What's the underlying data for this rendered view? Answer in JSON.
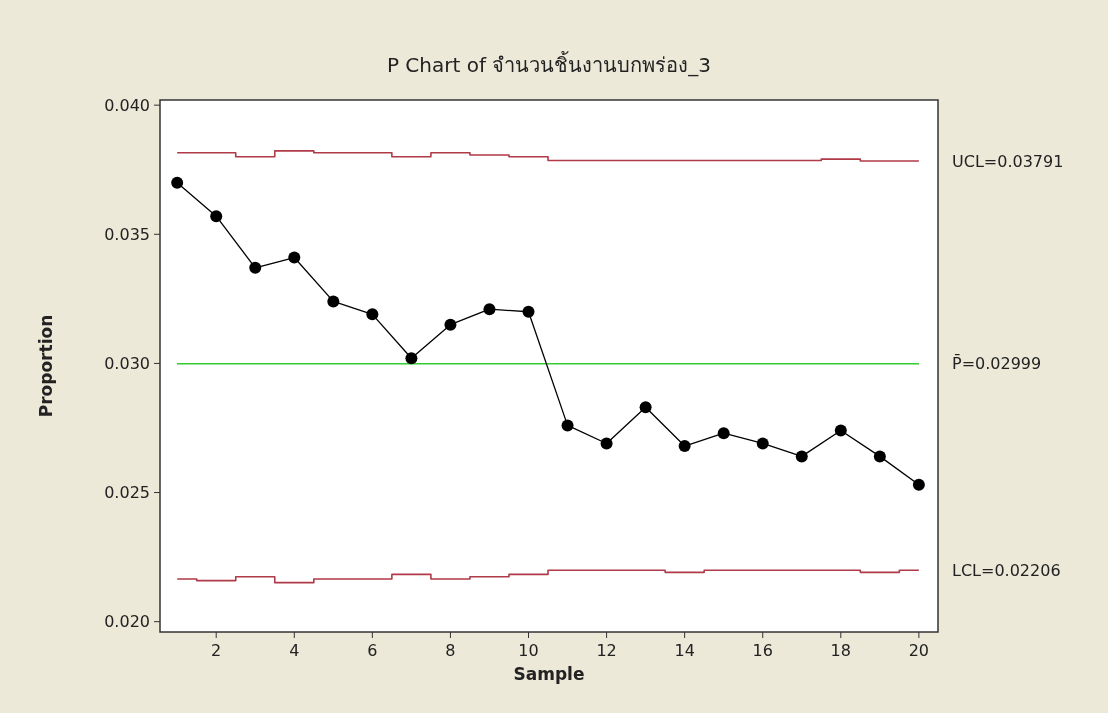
{
  "chart_data": {
    "type": "line",
    "title": "P Chart of จำนวนชิ้นงานบกพร่อง_3",
    "xlabel": "Sample",
    "ylabel": "Proportion",
    "x": [
      1,
      2,
      3,
      4,
      5,
      6,
      7,
      8,
      9,
      10,
      11,
      12,
      13,
      14,
      15,
      16,
      17,
      18,
      19,
      20
    ],
    "xlim": [
      0.56,
      20.49
    ],
    "xticks": [
      2,
      4,
      6,
      8,
      10,
      12,
      14,
      16,
      18,
      20
    ],
    "ylim": [
      0.0196,
      0.0402
    ],
    "yticks": [
      {
        "value": 0.02,
        "label": "0.020"
      },
      {
        "value": 0.025,
        "label": "0.025"
      },
      {
        "value": 0.03,
        "label": "0.030"
      },
      {
        "value": 0.035,
        "label": "0.035"
      },
      {
        "value": 0.04,
        "label": "0.040"
      }
    ],
    "series": [
      {
        "color": "#000000",
        "marker": "circle",
        "values": [
          0.037,
          0.0357,
          0.0337,
          0.0341,
          0.0324,
          0.0319,
          0.0302,
          0.0315,
          0.0321,
          0.032,
          0.0276,
          0.0269,
          0.0283,
          0.0268,
          0.0273,
          0.0269,
          0.0264,
          0.0274,
          0.0264,
          0.0253
        ]
      },
      {
        "type": "step",
        "name": "UCL=0.03791",
        "color": "#b03a48",
        "marker": "none",
        "values": [
          0.03816,
          0.03816,
          0.038,
          0.03823,
          0.03816,
          0.03816,
          0.038,
          0.03816,
          0.03807,
          0.038,
          0.03786,
          0.03786,
          0.03786,
          0.03786,
          0.03786,
          0.03786,
          0.03786,
          0.03791,
          0.03784,
          0.03784
        ]
      },
      {
        "type": "step",
        "name": "LCL=0.02206",
        "color": "#b03a48",
        "marker": "none",
        "values": [
          0.02165,
          0.02159,
          0.02174,
          0.02151,
          0.02165,
          0.02165,
          0.02183,
          0.02165,
          0.02174,
          0.02183,
          0.02199,
          0.02199,
          0.02199,
          0.02191,
          0.02199,
          0.02199,
          0.02199,
          0.02199,
          0.02191,
          0.02199
        ]
      }
    ],
    "ref_lines": [
      {
        "axis": "y",
        "value": 0.02999,
        "label": "P̄=0.02999",
        "color": "#33cc33"
      }
    ],
    "grid": false
  }
}
